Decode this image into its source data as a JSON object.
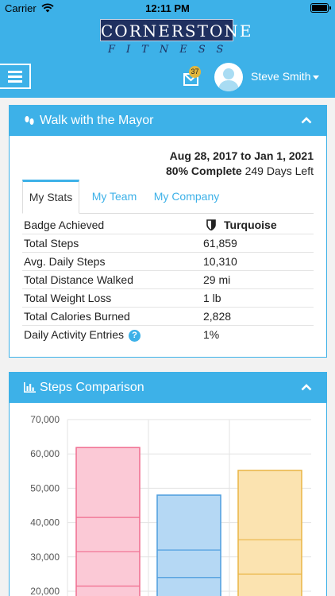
{
  "status_bar": {
    "carrier": "Carrier",
    "time": "12:11 PM"
  },
  "logo": {
    "title": "CORNERSTONE",
    "subtitle": "FITNESS"
  },
  "header": {
    "mail_count": "37",
    "user_name": "Steve Smith"
  },
  "walk_card": {
    "title": "Walk with the Mayor",
    "date_range": "Aug 28, 2017 to Jan 1, 2021",
    "complete": "80% Complete",
    "days_left": "249 Days Left",
    "tabs": [
      "My Stats",
      "My Team",
      "My Company"
    ],
    "stats": [
      {
        "label": "Badge Achieved",
        "value": "Turquoise"
      },
      {
        "label": "Total Steps",
        "value": "61,859"
      },
      {
        "label": "Avg. Daily Steps",
        "value": "10,310"
      },
      {
        "label": "Total Distance Walked",
        "value": "29 mi"
      },
      {
        "label": "Total Weight Loss",
        "value": "1 lb"
      },
      {
        "label": "Total Calories Burned",
        "value": "2,828"
      },
      {
        "label": "Daily Activity Entries",
        "value": "1%"
      }
    ],
    "help_glyph": "?"
  },
  "steps_card": {
    "title": "Steps Comparison"
  },
  "chart_data": {
    "type": "bar",
    "ylim": [
      0,
      70000
    ],
    "y_ticks": [
      "70,000",
      "60,000",
      "50,000",
      "40,000",
      "30,000",
      "20,000"
    ],
    "bars": [
      {
        "value": 61859,
        "segments": [
          21500,
          31500,
          41500,
          61859
        ],
        "color": "#f06d8f",
        "fill": "#fbc9d6"
      },
      {
        "value": 48000,
        "segments": [
          24000,
          32000,
          48000
        ],
        "color": "#4e9ede",
        "fill": "#b5d8f4"
      },
      {
        "value": 55200,
        "segments": [
          25000,
          35000,
          55200
        ],
        "color": "#e9b544",
        "fill": "#fbe3b0"
      }
    ]
  }
}
